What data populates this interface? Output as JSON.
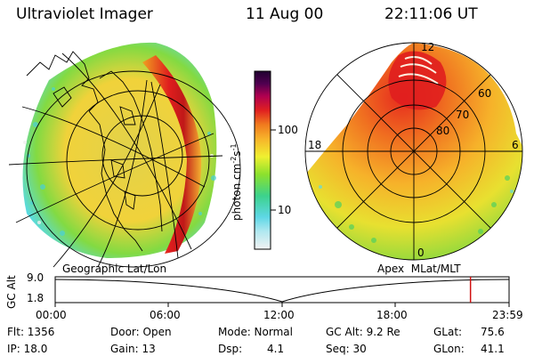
{
  "header": {
    "instrument": "Ultraviolet Imager",
    "date": "11 Aug 00",
    "time": "22:11:06 UT"
  },
  "colorbar": {
    "unit_label": "photon cm",
    "unit_exp1": "-2",
    "unit_mid": "s",
    "unit_exp2": "-1",
    "tick_100": "100",
    "tick_10": "10",
    "stops": [
      "#f2f2f2",
      "#5ed7e6",
      "#3cd28c",
      "#8ce12d",
      "#f0f030",
      "#f7b42a",
      "#f07a1e",
      "#e02020",
      "#b00050",
      "#500050",
      "#200030"
    ]
  },
  "left_panel": {
    "caption": "Geographic Lat/Lon"
  },
  "right_panel": {
    "caption": "Apex  MLat/MLT",
    "mlt_12": "12",
    "mlt_18": "18",
    "mlt_6": "6",
    "mlt_0": "0",
    "lat_60": "60",
    "lat_70": "70",
    "lat_80": "80"
  },
  "altitude_plot": {
    "ylabel": "GC Alt",
    "y_top": "9.0",
    "y_bottom": "1.8",
    "x_ticks": [
      "00:00",
      "06:00",
      "12:00",
      "18:00",
      "23:59"
    ],
    "cursor_fraction": 0.915
  },
  "info": {
    "flt": "Flt: 1356",
    "ip": "IP: 18.0",
    "door": "Door: Open",
    "gain": "Gain: 13",
    "mode": "Mode: Normal",
    "dsp_label": "Dsp:",
    "dsp_value": "4.1",
    "gc_alt": "GC Alt: 9.2 Re",
    "seq": "Seq: 30",
    "glat_label": "GLat:",
    "glat_value": "75.6",
    "glon_label": "GLon:",
    "glon_value": "41.1"
  }
}
